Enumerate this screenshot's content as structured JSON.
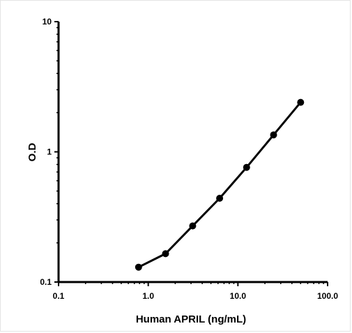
{
  "chart_data": {
    "type": "line",
    "title": "",
    "xlabel": "Human APRIL (ng/mL)",
    "ylabel": "O.D",
    "x_scale": "log",
    "y_scale": "log",
    "xlim": [
      0.1,
      100
    ],
    "ylim": [
      0.1,
      10
    ],
    "x_ticks": [
      {
        "value": 0.1,
        "label": "0.1"
      },
      {
        "value": 1,
        "label": "1.0"
      },
      {
        "value": 10,
        "label": "10.0"
      },
      {
        "value": 100,
        "label": "100.0"
      }
    ],
    "y_ticks": [
      {
        "value": 0.1,
        "label": "0.1"
      },
      {
        "value": 1,
        "label": "1"
      },
      {
        "value": 10,
        "label": "10"
      }
    ],
    "grid": false,
    "legend": "none",
    "line_color": "#000000",
    "series": [
      {
        "x": [
          0.78,
          1.56,
          3.13,
          6.25,
          12.5,
          25,
          50
        ],
        "y": [
          0.13,
          0.165,
          0.27,
          0.44,
          0.76,
          1.35,
          2.4
        ]
      }
    ]
  }
}
